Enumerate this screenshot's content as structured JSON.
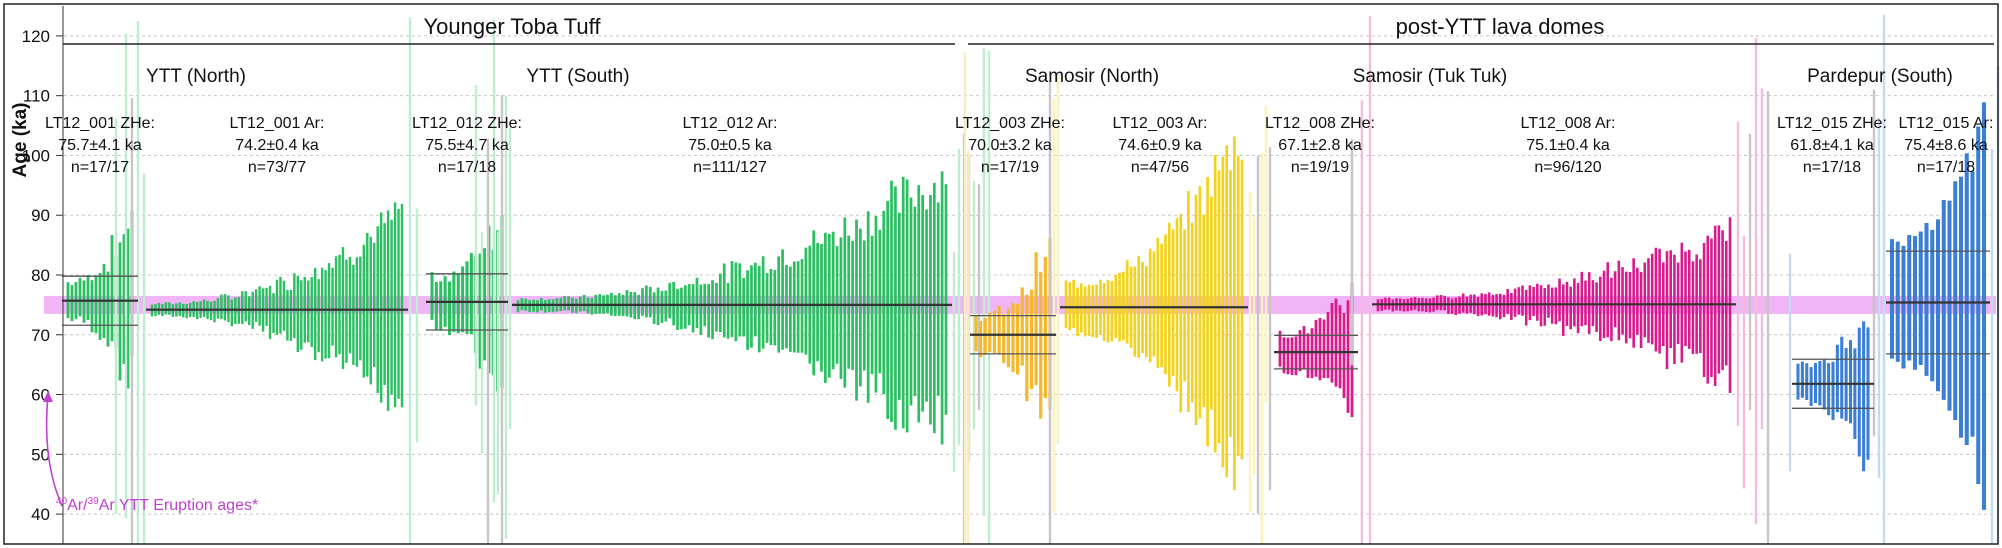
{
  "chart_data": {
    "type": "scatter",
    "ylabel": "Age (ka)",
    "ylim": [
      35,
      125
    ],
    "yticks": [
      40,
      50,
      60,
      70,
      80,
      90,
      100,
      110,
      120
    ],
    "grid": true,
    "ytt_band": {
      "low": 73.5,
      "high": 76.5,
      "color": "#f0b4f7"
    },
    "annotation": {
      "sup1": "40",
      "t1": "Ar/",
      "sup2": "39",
      "t2": "Ar YTT Eruption ages*",
      "color": "#c040d0"
    },
    "headers": [
      {
        "text": "Younger Toba Tuff"
      },
      {
        "text": "post-YTT lava domes"
      }
    ],
    "sites": [
      {
        "text": "YTT (North)"
      },
      {
        "text": "YTT (South)"
      },
      {
        "text": "Samosir (North)"
      },
      {
        "text": "Samosir (Tuk Tuk)"
      },
      {
        "text": "Pardepur (South)"
      }
    ],
    "series": [
      {
        "key": "s1",
        "l1": "LT12_001 ZHe:",
        "l2": "75.7±4.1 ka",
        "l3": "n=17/17",
        "method": "ZHe",
        "color": "#2cbf62",
        "accepted": 17,
        "mean": 75.7,
        "err": 4.1,
        "unc_min": 3,
        "unc_max": 14
      },
      {
        "key": "s2",
        "l1": "LT12_001 Ar:",
        "l2": "74.2±0.4 ka",
        "l3": "n=73/77",
        "method": "Ar",
        "color": "#2cbf62",
        "accepted": 73,
        "mean": 74.2,
        "err": 0.4,
        "unc_min": 1,
        "unc_max": 16
      },
      {
        "key": "s3",
        "l1": "LT12_012 ZHe:",
        "l2": "75.5±4.7 ka",
        "l3": "n=17/18",
        "method": "ZHe",
        "color": "#2cbf62",
        "accepted": 17,
        "mean": 75.5,
        "err": 4.7,
        "unc_min": 4,
        "unc_max": 15
      },
      {
        "key": "s4",
        "l1": "LT12_012 Ar:",
        "l2": "75.0±0.5 ka",
        "l3": "n=111/127",
        "method": "Ar",
        "color": "#2cbf62",
        "accepted": 111,
        "mean": 75.0,
        "err": 0.5,
        "unc_min": 1,
        "unc_max": 22
      },
      {
        "key": "s5",
        "l1": "LT12_003 ZHe:",
        "l2": "70.0±3.2 ka",
        "l3": "n=17/19",
        "method": "ZHe",
        "color": "#f5b82e",
        "accepted": 17,
        "mean": 70.0,
        "err": 3.2,
        "unc_min": 3,
        "unc_max": 14
      },
      {
        "key": "s6",
        "l1": "LT12_003 Ar:",
        "l2": "74.6±0.9 ka",
        "l3": "n=47/56",
        "method": "Ar",
        "color": "#f2d21c",
        "accepted": 47,
        "mean": 74.6,
        "err": 0.9,
        "unc_min": 4,
        "unc_max": 30
      },
      {
        "key": "s7",
        "l1": "LT12_008 ZHe:",
        "l2": "67.1±2.8 ka",
        "l3": "n=19/19",
        "method": "ZHe",
        "color": "#d81b8c",
        "accepted": 19,
        "mean": 67.1,
        "err": 2.8,
        "unc_min": 3,
        "unc_max": 10
      },
      {
        "key": "s8",
        "l1": "LT12_008 Ar:",
        "l2": "75.1±0.4 ka",
        "l3": "n=96/120",
        "method": "Ar",
        "color": "#d81b8c",
        "accepted": 96,
        "mean": 75.1,
        "err": 0.4,
        "unc_min": 1,
        "unc_max": 12
      },
      {
        "key": "s9",
        "l1": "LT12_015 ZHe:",
        "l2": "61.8±4.1 ka",
        "l3": "n=17/18",
        "method": "ZHe",
        "color": "#3a7fd5",
        "accepted": 17,
        "mean": 61.8,
        "err": 4.1,
        "unc_min": 3,
        "unc_max": 12
      },
      {
        "key": "s10",
        "l1": "LT12_015 Ar:",
        "l2": "75.4±8.6 ka",
        "l3": "n=17/18",
        "method": "Ar",
        "color": "#3a7fd5",
        "accepted": 17,
        "mean": 75.4,
        "err": 8.6,
        "unc_min": 10,
        "unc_max": 30
      }
    ]
  }
}
